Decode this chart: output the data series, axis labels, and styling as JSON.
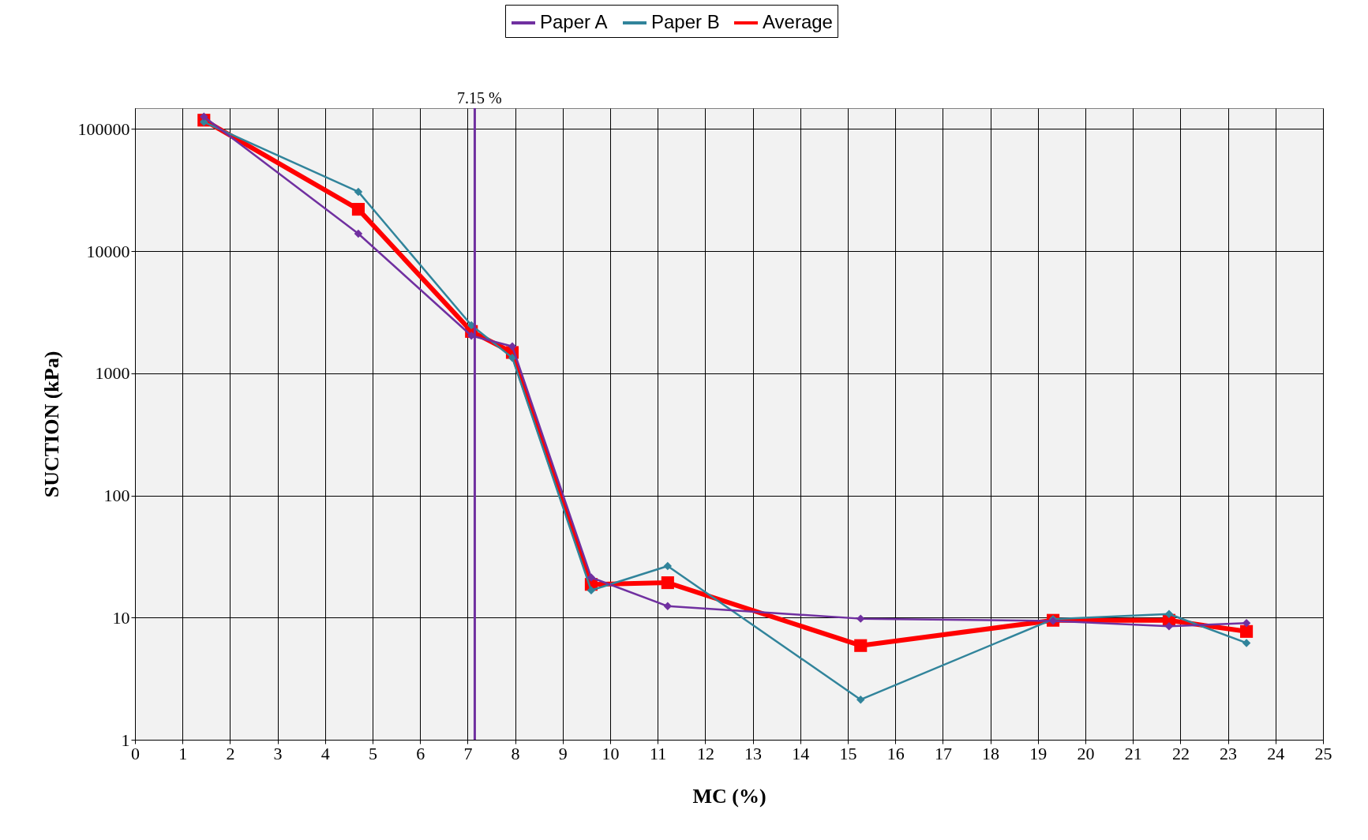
{
  "chart_data": {
    "type": "line",
    "xlabel": "MC (%)",
    "ylabel": "SUCTION (kPa)",
    "log": "y",
    "grid": true,
    "legend": "top",
    "xlim": [
      0,
      25
    ],
    "xticks": [
      0,
      1,
      2,
      3,
      4,
      5,
      6,
      7,
      8,
      9,
      10,
      11,
      12,
      13,
      14,
      15,
      16,
      17,
      18,
      19,
      20,
      21,
      22,
      23,
      24,
      25
    ],
    "ylim": [
      1,
      148000
    ],
    "yticks": [
      1,
      10,
      100,
      1000,
      10000,
      100000
    ],
    "x": [
      1.45,
      4.7,
      7.08,
      7.94,
      9.6,
      11.21,
      15.27,
      19.32,
      21.76,
      23.39
    ],
    "series": [
      {
        "name": "Paper A",
        "color": "#7030a0",
        "marker": "diamond",
        "values": [
          126000,
          13900,
          2030,
          1660,
          21.3,
          12.4,
          9.8,
          9.4,
          8.5,
          9.0
        ]
      },
      {
        "name": "Paper B",
        "color": "#31849b",
        "marker": "diamond",
        "values": [
          114000,
          30600,
          2470,
          1340,
          16.7,
          26.4,
          2.13,
          9.7,
          10.7,
          6.2
        ]
      },
      {
        "name": "Average",
        "color": "#ff0000",
        "marker": "square",
        "values": [
          118000,
          22000,
          2200,
          1480,
          18.7,
          19.3,
          5.9,
          9.5,
          9.5,
          7.7
        ]
      }
    ],
    "ref_lines": [
      {
        "axis": "x",
        "value": 7.15,
        "label": "7.15 %",
        "color": "#7030a0"
      }
    ]
  }
}
